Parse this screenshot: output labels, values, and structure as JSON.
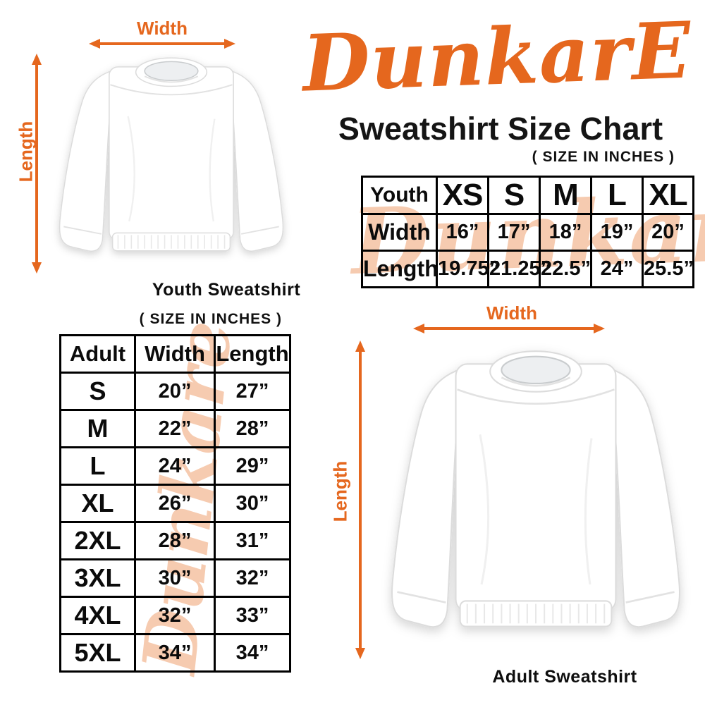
{
  "colors": {
    "accent_orange": "#E5671E",
    "watermark_peach": "#F6CBB0",
    "text_black": "#111111",
    "table_border": "#000000",
    "background": "#ffffff"
  },
  "brand": {
    "logo_text": "DunkarE",
    "title": "Sweatshirt Size Chart",
    "units_note": "( SIZE IN INCHES )"
  },
  "watermark_text": "Dunkare",
  "youth_diagram": {
    "width_label": "Width",
    "length_label": "Length",
    "caption": "Youth Sweatshirt"
  },
  "adult_diagram": {
    "width_label": "Width",
    "length_label": "Length",
    "caption": "Adult Sweatshirt"
  },
  "youth_table": {
    "header": [
      "Youth",
      "XS",
      "S",
      "M",
      "L",
      "XL"
    ],
    "rows": [
      [
        "Width",
        "16”",
        "17”",
        "18”",
        "19”",
        "20”"
      ],
      [
        "Length",
        "19.75”",
        "21.25”",
        "22.5”",
        "24”",
        "25.5”"
      ]
    ]
  },
  "adult_table": {
    "units_note": "( SIZE IN INCHES )",
    "header": [
      "Adult",
      "Width",
      "Length"
    ],
    "rows": [
      [
        "S",
        "20”",
        "27”"
      ],
      [
        "M",
        "22”",
        "28”"
      ],
      [
        "L",
        "24”",
        "29”"
      ],
      [
        "XL",
        "26”",
        "30”"
      ],
      [
        "2XL",
        "28”",
        "31”"
      ],
      [
        "3XL",
        "30”",
        "32”"
      ],
      [
        "4XL",
        "32”",
        "33”"
      ],
      [
        "5XL",
        "34”",
        "34”"
      ]
    ]
  }
}
